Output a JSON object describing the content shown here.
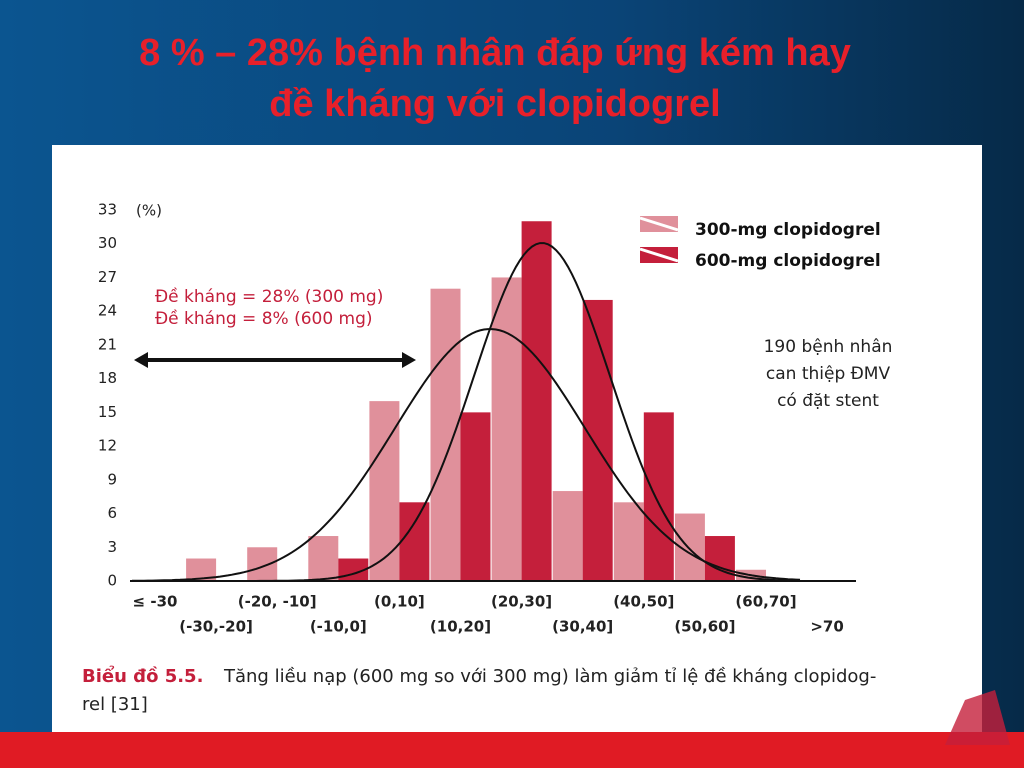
{
  "slide": {
    "title": [
      "8 % – 28% bệnh nhân đáp ứng kém hay",
      "đề  kháng  với  clopidogrel"
    ]
  },
  "chart_data": {
    "type": "bar",
    "y_label": "(%)",
    "categories": [
      "≤ -30",
      "(-30,-20]",
      "(-20, -10]",
      "(-10,0]",
      "(0,10]",
      "(10,20]",
      "(20,30]",
      "(30,40]",
      "(40,50]",
      "(50,60]",
      "(60,70]",
      ">70"
    ],
    "series": [
      {
        "name": "300-mg clopidogrel",
        "color": "#e0909b",
        "values": [
          0,
          2,
          3,
          4,
          16,
          26,
          27,
          8,
          7,
          6,
          1,
          0
        ]
      },
      {
        "name": "600-mg clopidogrel",
        "color": "#c41f3b",
        "values": [
          0,
          0,
          0,
          2,
          7,
          15,
          32,
          25,
          15,
          4,
          0,
          0
        ]
      }
    ],
    "ylim": [
      0,
      33
    ],
    "yticks": [
      0,
      3,
      6,
      9,
      12,
      15,
      18,
      21,
      24,
      27,
      30,
      33
    ],
    "annotation": [
      "Đề kháng = 28% (300 mg)",
      "Đề kháng = 8% (600 mg)"
    ],
    "note": [
      "190 bệnh nhân",
      "can thiệp ĐMV",
      "có đặt stent"
    ]
  },
  "caption": {
    "label": "Biểu đồ 5.5.",
    "text": [
      "Tăng liều nạp (600 mg so với 300 mg) làm giảm tỉ lệ đề kháng clopidog-",
      "rel [31]"
    ]
  }
}
